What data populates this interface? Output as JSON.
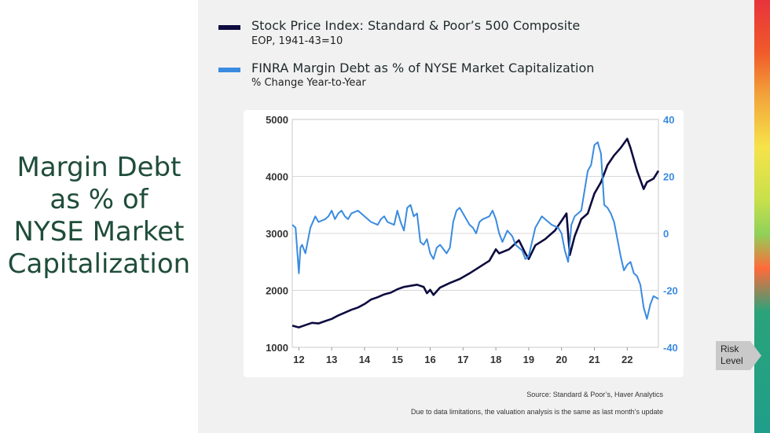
{
  "slide": {
    "title_lines": [
      "Margin Debt",
      "as % of",
      "NYSE Market",
      "Capitalization"
    ]
  },
  "legend": [
    {
      "title": "Stock Price Index: Standard & Poor’s 500 Composite",
      "subtitle": "EOP, 1941-43=10",
      "color": "#0d0b3f"
    },
    {
      "title": "FINRA Margin Debt as % of NYSE Market Capitalization",
      "subtitle": "% Change Year-to-Year",
      "color": "#3a8be0"
    }
  ],
  "footer": {
    "source": "Source: Standard & Poor’s, Haver Analytics",
    "note": "Due to data limitations, the valuation analysis is the same as last month’s update"
  },
  "risk_label": {
    "line1": "Risk",
    "line2": "Level"
  },
  "chart_data": {
    "type": "line",
    "x_tick_labels": [
      "12",
      "13",
      "14",
      "15",
      "16",
      "17",
      "18",
      "19",
      "20",
      "21",
      "22"
    ],
    "x_tick_values": [
      2012,
      2013,
      2014,
      2015,
      2016,
      2017,
      2018,
      2019,
      2020,
      2021,
      2022
    ],
    "xlim": [
      2011.8,
      2022.95
    ],
    "left_axis": {
      "ticks": [
        1000,
        2000,
        3000,
        4000,
        5000
      ],
      "lim": [
        1000,
        5000
      ],
      "color": "#333333"
    },
    "right_axis": {
      "ticks": [
        -40,
        -20,
        0,
        20,
        40
      ],
      "lim": [
        -40,
        40
      ],
      "color": "#3a8be0"
    },
    "grid": true,
    "series": [
      {
        "axis": "left",
        "color": "#0d0b3f",
        "points": [
          [
            2011.8,
            1380
          ],
          [
            2012.0,
            1350
          ],
          [
            2012.2,
            1390
          ],
          [
            2012.4,
            1430
          ],
          [
            2012.6,
            1420
          ],
          [
            2012.8,
            1460
          ],
          [
            2013.0,
            1500
          ],
          [
            2013.2,
            1560
          ],
          [
            2013.4,
            1610
          ],
          [
            2013.6,
            1660
          ],
          [
            2013.8,
            1700
          ],
          [
            2014.0,
            1760
          ],
          [
            2014.2,
            1840
          ],
          [
            2014.4,
            1880
          ],
          [
            2014.6,
            1930
          ],
          [
            2014.8,
            1960
          ],
          [
            2015.0,
            2020
          ],
          [
            2015.2,
            2060
          ],
          [
            2015.4,
            2080
          ],
          [
            2015.6,
            2100
          ],
          [
            2015.8,
            2060
          ],
          [
            2015.9,
            1950
          ],
          [
            2016.0,
            2010
          ],
          [
            2016.1,
            1920
          ],
          [
            2016.3,
            2050
          ],
          [
            2016.6,
            2130
          ],
          [
            2016.9,
            2200
          ],
          [
            2017.2,
            2300
          ],
          [
            2017.5,
            2410
          ],
          [
            2017.8,
            2520
          ],
          [
            2018.0,
            2720
          ],
          [
            2018.1,
            2650
          ],
          [
            2018.4,
            2720
          ],
          [
            2018.7,
            2880
          ],
          [
            2018.9,
            2650
          ],
          [
            2019.0,
            2550
          ],
          [
            2019.2,
            2790
          ],
          [
            2019.5,
            2900
          ],
          [
            2019.8,
            3050
          ],
          [
            2020.0,
            3220
          ],
          [
            2020.15,
            3350
          ],
          [
            2020.25,
            2620
          ],
          [
            2020.4,
            2950
          ],
          [
            2020.6,
            3250
          ],
          [
            2020.8,
            3350
          ],
          [
            2021.0,
            3700
          ],
          [
            2021.2,
            3900
          ],
          [
            2021.4,
            4200
          ],
          [
            2021.6,
            4370
          ],
          [
            2021.8,
            4500
          ],
          [
            2022.0,
            4660
          ],
          [
            2022.1,
            4500
          ],
          [
            2022.3,
            4100
          ],
          [
            2022.5,
            3780
          ],
          [
            2022.6,
            3900
          ],
          [
            2022.8,
            3960
          ],
          [
            2022.95,
            4100
          ]
        ]
      },
      {
        "axis": "right",
        "color": "#3a8be0",
        "points": [
          [
            2011.8,
            3
          ],
          [
            2011.9,
            2
          ],
          [
            2012.0,
            -14
          ],
          [
            2012.05,
            -5
          ],
          [
            2012.1,
            -4
          ],
          [
            2012.2,
            -7
          ],
          [
            2012.35,
            2
          ],
          [
            2012.5,
            6
          ],
          [
            2012.6,
            4
          ],
          [
            2012.8,
            5
          ],
          [
            2012.9,
            6
          ],
          [
            2013.0,
            8
          ],
          [
            2013.1,
            5
          ],
          [
            2013.2,
            7
          ],
          [
            2013.3,
            8
          ],
          [
            2013.4,
            6
          ],
          [
            2013.5,
            5
          ],
          [
            2013.6,
            7
          ],
          [
            2013.8,
            8
          ],
          [
            2014.0,
            6
          ],
          [
            2014.1,
            5
          ],
          [
            2014.2,
            4
          ],
          [
            2014.4,
            3
          ],
          [
            2014.5,
            5
          ],
          [
            2014.6,
            6
          ],
          [
            2014.7,
            4
          ],
          [
            2014.9,
            3
          ],
          [
            2015.0,
            8
          ],
          [
            2015.1,
            4
          ],
          [
            2015.2,
            1
          ],
          [
            2015.3,
            9
          ],
          [
            2015.4,
            10
          ],
          [
            2015.5,
            6
          ],
          [
            2015.6,
            7
          ],
          [
            2015.7,
            -3
          ],
          [
            2015.8,
            -4
          ],
          [
            2015.9,
            -2
          ],
          [
            2016.0,
            -7
          ],
          [
            2016.1,
            -9
          ],
          [
            2016.2,
            -5
          ],
          [
            2016.3,
            -4
          ],
          [
            2016.5,
            -7
          ],
          [
            2016.6,
            -5
          ],
          [
            2016.7,
            4
          ],
          [
            2016.8,
            8
          ],
          [
            2016.9,
            9
          ],
          [
            2017.0,
            7
          ],
          [
            2017.2,
            3
          ],
          [
            2017.3,
            2
          ],
          [
            2017.4,
            0
          ],
          [
            2017.5,
            4
          ],
          [
            2017.6,
            5
          ],
          [
            2017.8,
            6
          ],
          [
            2017.9,
            8
          ],
          [
            2018.0,
            5
          ],
          [
            2018.1,
            0
          ],
          [
            2018.2,
            -3
          ],
          [
            2018.35,
            1
          ],
          [
            2018.5,
            -1
          ],
          [
            2018.6,
            -4
          ],
          [
            2018.8,
            -6
          ],
          [
            2018.9,
            -9
          ],
          [
            2019.0,
            -8
          ],
          [
            2019.2,
            2
          ],
          [
            2019.3,
            4
          ],
          [
            2019.4,
            6
          ],
          [
            2019.5,
            5
          ],
          [
            2019.7,
            3
          ],
          [
            2019.9,
            2
          ],
          [
            2020.0,
            0
          ],
          [
            2020.1,
            -6
          ],
          [
            2020.2,
            -10
          ],
          [
            2020.3,
            3
          ],
          [
            2020.4,
            6
          ],
          [
            2020.6,
            8
          ],
          [
            2020.8,
            22
          ],
          [
            2020.9,
            24
          ],
          [
            2021.0,
            31
          ],
          [
            2021.1,
            32
          ],
          [
            2021.2,
            28
          ],
          [
            2021.3,
            10
          ],
          [
            2021.4,
            9
          ],
          [
            2021.5,
            7
          ],
          [
            2021.6,
            4
          ],
          [
            2021.7,
            -2
          ],
          [
            2021.8,
            -8
          ],
          [
            2021.9,
            -13
          ],
          [
            2022.0,
            -11
          ],
          [
            2022.1,
            -10
          ],
          [
            2022.2,
            -14
          ],
          [
            2022.3,
            -15
          ],
          [
            2022.4,
            -18
          ],
          [
            2022.5,
            -26
          ],
          [
            2022.6,
            -30
          ],
          [
            2022.7,
            -25
          ],
          [
            2022.8,
            -22
          ],
          [
            2022.95,
            -23
          ]
        ]
      }
    ]
  }
}
